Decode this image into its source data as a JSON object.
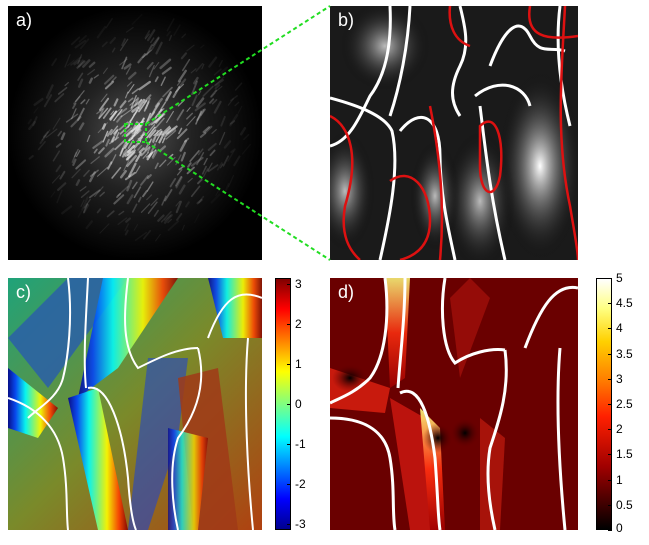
{
  "panels": {
    "a": {
      "label": "a)"
    },
    "b": {
      "label": "b)"
    },
    "c": {
      "label": "c)"
    },
    "d": {
      "label": "d)"
    }
  },
  "colorbar_c": {
    "ticks": [
      "3",
      "2",
      "1",
      "0",
      "-1",
      "-2",
      "-3"
    ],
    "range": [
      -3.14,
      3.14
    ]
  },
  "colorbar_d": {
    "ticks": [
      "5",
      "4.5",
      "4",
      "3.5",
      "3",
      "2.5",
      "2",
      "1.5",
      "1",
      "0.5",
      "0"
    ],
    "range": [
      0,
      5
    ]
  },
  "colors": {
    "zoom_box": "#22dd22",
    "contour_white": "#ffffff",
    "contour_red": "#dd1111"
  }
}
